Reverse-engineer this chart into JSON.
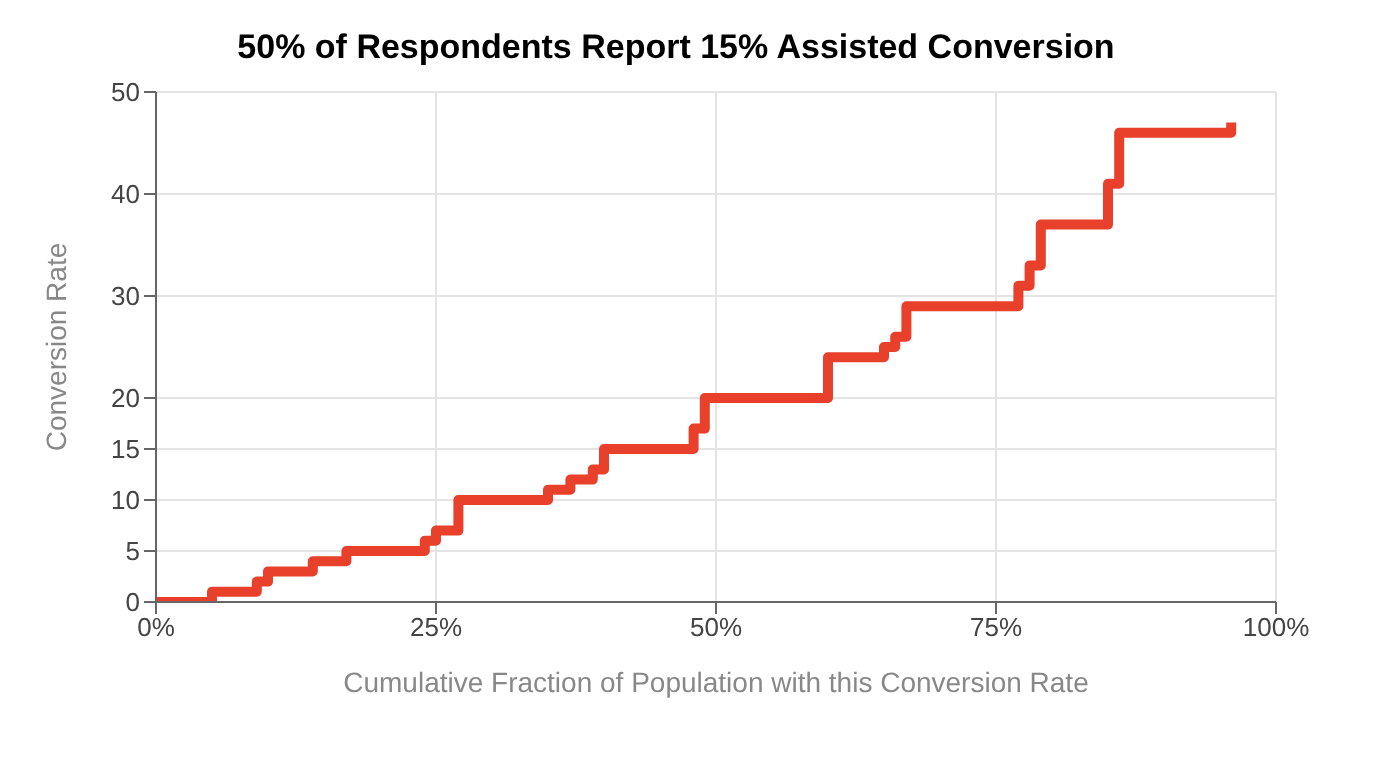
{
  "chart_data": {
    "type": "step",
    "title": "50% of Respondents Report 15% Assisted Conversion",
    "xlabel": "Cumulative Fraction of Population with this Conversion Rate",
    "ylabel": "Conversion Rate",
    "x": [
      0,
      5,
      9,
      10,
      14,
      17,
      24,
      25,
      27,
      35,
      37,
      39,
      40,
      48,
      49,
      60,
      65,
      66,
      67,
      77,
      78,
      79,
      85,
      86,
      96
    ],
    "series": [
      {
        "color": "#e8402a",
        "values": [
          0,
          1,
          2,
          3,
          4,
          5,
          6,
          7,
          10,
          11,
          12,
          13,
          15,
          17,
          20,
          24,
          25,
          26,
          29,
          31,
          33,
          37,
          41,
          46,
          47
        ]
      }
    ],
    "xlim": [
      0,
      100
    ],
    "xticks": [
      {
        "value": 0,
        "label": "0%"
      },
      {
        "value": 25,
        "label": "25%"
      },
      {
        "value": 50,
        "label": "50%"
      },
      {
        "value": 75,
        "label": "75%"
      },
      {
        "value": 100,
        "label": "100%"
      }
    ],
    "ylim": [
      0,
      50
    ],
    "yticks": [
      0,
      5,
      10,
      15,
      20,
      30,
      40,
      50
    ],
    "grid": true,
    "legend": false,
    "marker": "none",
    "line_style": "solid"
  }
}
